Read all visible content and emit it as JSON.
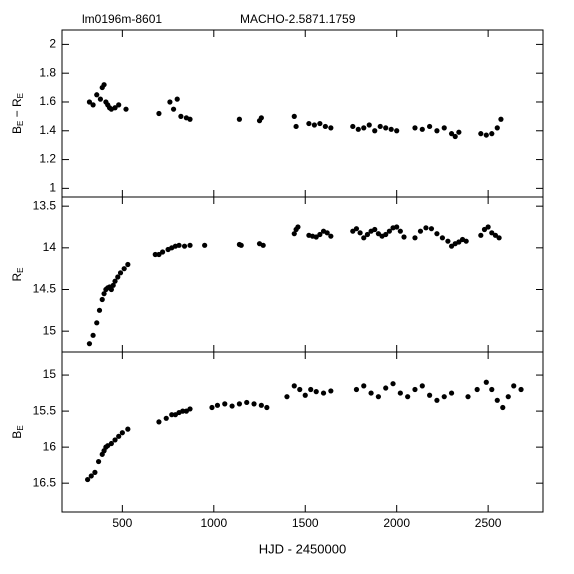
{
  "chart_data": [
    {
      "type": "scatter",
      "annotations": [
        "lm0196m-8601",
        "MACHO-2.5871.1759"
      ],
      "ylabel": [
        {
          "text": "B",
          "sub": false
        },
        {
          "text": "E",
          "sub": true
        },
        {
          "text": " − R",
          "sub": false
        },
        {
          "text": "E",
          "sub": true
        }
      ],
      "xlim": [
        170,
        2800
      ],
      "ylim": [
        0.94,
        2.1
      ],
      "yticks": [
        1,
        1.2,
        1.4,
        1.6,
        1.8,
        2
      ],
      "inverted": false,
      "color": "#000000",
      "x": [
        320,
        340,
        360,
        380,
        390,
        400,
        410,
        420,
        430,
        440,
        460,
        480,
        520,
        700,
        760,
        780,
        800,
        820,
        850,
        870,
        1140,
        1250,
        1260,
        1440,
        1450,
        1520,
        1550,
        1580,
        1610,
        1640,
        1760,
        1790,
        1820,
        1850,
        1880,
        1910,
        1940,
        1970,
        2000,
        2100,
        2140,
        2180,
        2220,
        2260,
        2300,
        2320,
        2340,
        2460,
        2490,
        2520,
        2550,
        2570
      ],
      "values": [
        1.6,
        1.58,
        1.65,
        1.62,
        1.7,
        1.72,
        1.6,
        1.58,
        1.56,
        1.55,
        1.56,
        1.58,
        1.55,
        1.52,
        1.6,
        1.55,
        1.62,
        1.5,
        1.49,
        1.48,
        1.48,
        1.47,
        1.49,
        1.5,
        1.43,
        1.45,
        1.44,
        1.45,
        1.43,
        1.42,
        1.43,
        1.41,
        1.42,
        1.44,
        1.4,
        1.43,
        1.42,
        1.41,
        1.4,
        1.42,
        1.41,
        1.43,
        1.4,
        1.42,
        1.38,
        1.36,
        1.39,
        1.38,
        1.37,
        1.38,
        1.42,
        1.48
      ]
    },
    {
      "type": "scatter",
      "ylabel": [
        {
          "text": "R",
          "sub": false
        },
        {
          "text": "E",
          "sub": true
        }
      ],
      "xlim": [
        170,
        2800
      ],
      "ylim": [
        13.39,
        15.25
      ],
      "yticks": [
        13.5,
        14,
        14.5,
        15
      ],
      "inverted": true,
      "color": "#000000",
      "x": [
        320,
        340,
        360,
        375,
        390,
        400,
        410,
        420,
        430,
        440,
        450,
        460,
        475,
        490,
        510,
        530,
        680,
        700,
        720,
        750,
        770,
        790,
        810,
        840,
        870,
        950,
        1140,
        1150,
        1250,
        1270,
        1440,
        1450,
        1460,
        1520,
        1540,
        1560,
        1580,
        1600,
        1620,
        1640,
        1760,
        1780,
        1800,
        1820,
        1840,
        1860,
        1880,
        1900,
        1920,
        1940,
        1960,
        1980,
        2000,
        2020,
        2040,
        2100,
        2130,
        2160,
        2190,
        2220,
        2250,
        2280,
        2300,
        2320,
        2340,
        2360,
        2380,
        2460,
        2480,
        2500,
        2520,
        2540,
        2560
      ],
      "values": [
        15.15,
        15.05,
        14.9,
        14.75,
        14.62,
        14.55,
        14.5,
        14.48,
        14.47,
        14.5,
        14.45,
        14.4,
        14.35,
        14.3,
        14.25,
        14.2,
        14.08,
        14.08,
        14.05,
        14.02,
        14.0,
        13.98,
        13.97,
        13.98,
        13.97,
        13.97,
        13.96,
        13.97,
        13.95,
        13.97,
        13.83,
        13.78,
        13.75,
        13.85,
        13.86,
        13.87,
        13.84,
        13.8,
        13.82,
        13.86,
        13.8,
        13.77,
        13.82,
        13.88,
        13.84,
        13.8,
        13.78,
        13.83,
        13.86,
        13.84,
        13.8,
        13.76,
        13.75,
        13.8,
        13.87,
        13.88,
        13.8,
        13.76,
        13.77,
        13.83,
        13.88,
        13.92,
        13.98,
        13.95,
        13.93,
        13.9,
        13.92,
        13.85,
        13.78,
        13.75,
        13.82,
        13.85,
        13.88
      ]
    },
    {
      "type": "scatter",
      "ylabel": [
        {
          "text": "B",
          "sub": false
        },
        {
          "text": "E",
          "sub": true
        }
      ],
      "xlabel": "HJD - 2450000",
      "xlim": [
        170,
        2800
      ],
      "xticks": [
        500,
        1000,
        1500,
        2000,
        2500
      ],
      "ylim": [
        14.68,
        16.9
      ],
      "yticks": [
        15,
        15.5,
        16,
        16.5
      ],
      "inverted": true,
      "color": "#000000",
      "x": [
        310,
        330,
        350,
        370,
        390,
        400,
        410,
        420,
        440,
        460,
        480,
        500,
        530,
        700,
        740,
        770,
        790,
        810,
        830,
        850,
        870,
        990,
        1020,
        1060,
        1100,
        1140,
        1180,
        1220,
        1260,
        1290,
        1400,
        1440,
        1470,
        1500,
        1530,
        1560,
        1600,
        1640,
        1780,
        1820,
        1860,
        1900,
        1940,
        1980,
        2020,
        2060,
        2100,
        2140,
        2180,
        2220,
        2260,
        2300,
        2390,
        2440,
        2490,
        2520,
        2550,
        2580,
        2610,
        2640,
        2680
      ],
      "values": [
        16.45,
        16.4,
        16.35,
        16.2,
        16.1,
        16.05,
        16.0,
        15.98,
        15.95,
        15.9,
        15.85,
        15.8,
        15.75,
        15.65,
        15.6,
        15.55,
        15.55,
        15.52,
        15.5,
        15.5,
        15.47,
        15.45,
        15.42,
        15.4,
        15.43,
        15.4,
        15.38,
        15.4,
        15.42,
        15.45,
        15.3,
        15.15,
        15.2,
        15.28,
        15.2,
        15.23,
        15.25,
        15.22,
        15.2,
        15.15,
        15.25,
        15.3,
        15.18,
        15.12,
        15.25,
        15.3,
        15.2,
        15.15,
        15.28,
        15.35,
        15.3,
        15.25,
        15.3,
        15.2,
        15.1,
        15.2,
        15.35,
        15.45,
        15.3,
        15.15,
        15.2
      ]
    }
  ]
}
